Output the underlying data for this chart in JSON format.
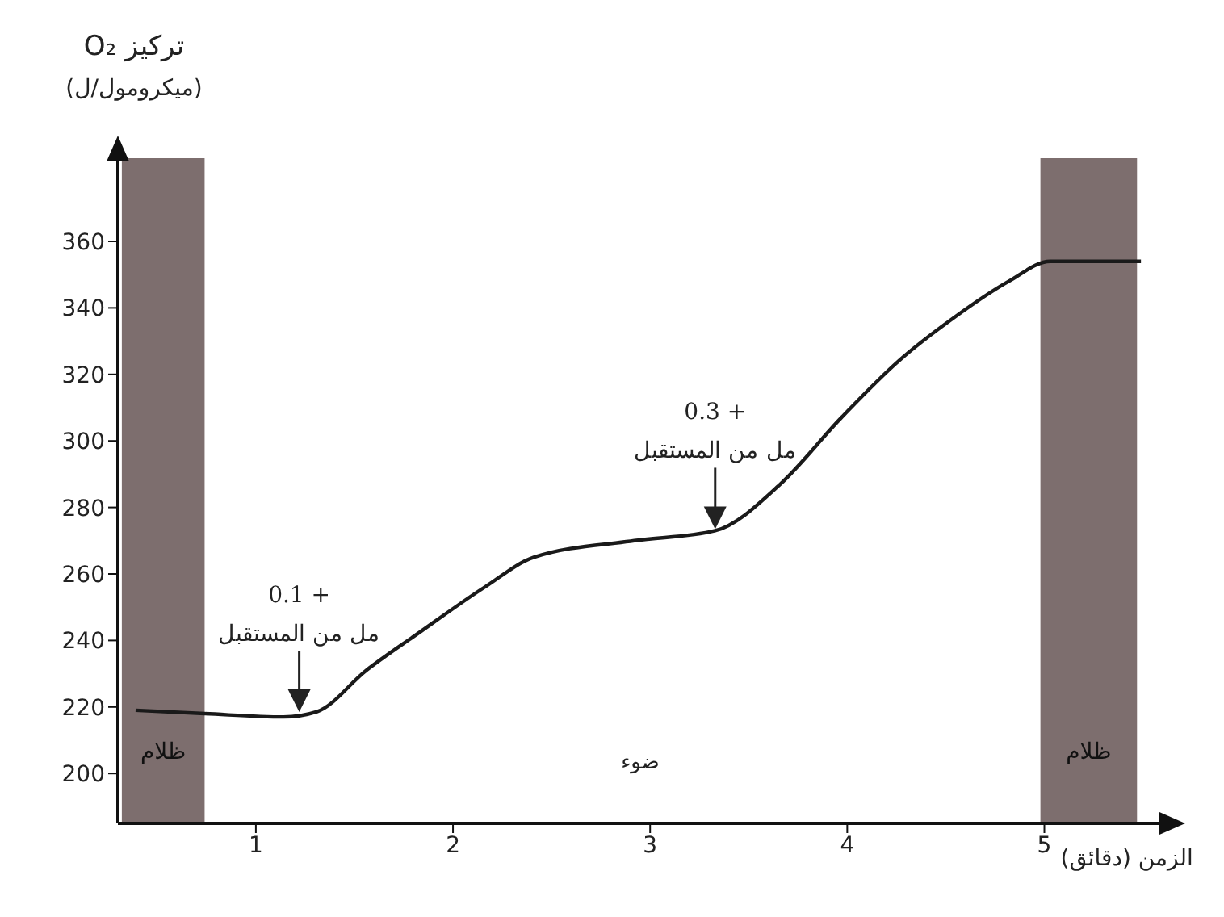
{
  "chart_data": {
    "type": "line",
    "xlabel": "الزمن (دقائق)",
    "ylabel": "تركيز O₂\n(ميكرومول/ل)",
    "x": [
      0.39,
      0.74,
      1.14,
      1.31,
      1.56,
      1.82,
      2.16,
      2.41,
      2.92,
      3.33,
      3.66,
      3.97,
      4.26,
      4.54,
      4.82,
      5.03,
      5.49
    ],
    "series": [
      {
        "color": "#1a1a1a",
        "values": [
          219,
          218,
          217,
          218.6,
          231,
          242,
          256,
          265,
          270,
          273,
          287,
          307,
          324,
          337,
          348,
          354,
          354
        ]
      }
    ],
    "xlim": [
      0.3,
      5.6
    ],
    "xticks": [
      1,
      2,
      3,
      4,
      5
    ],
    "ylim": [
      185,
      385
    ],
    "yticks": [
      200,
      220,
      240,
      260,
      280,
      300,
      320,
      340,
      360
    ],
    "bands": [
      {
        "axis": "x",
        "from": 0.32,
        "to": 0.74,
        "label": "ظلام",
        "color": "#7d6e6e"
      },
      {
        "axis": "x",
        "from": 4.98,
        "to": 5.47,
        "label": "ظلام",
        "color": "#7d6e6e"
      }
    ],
    "annotations": [
      {
        "text": "0.1 +\nمل من المستقبل",
        "x": 1.22,
        "y": 218
      },
      {
        "text": "0.3 +\nمل من المستقبل",
        "x": 3.33,
        "y": 273
      },
      "ضوء"
    ],
    "marker": "none",
    "line_style": "solid"
  }
}
